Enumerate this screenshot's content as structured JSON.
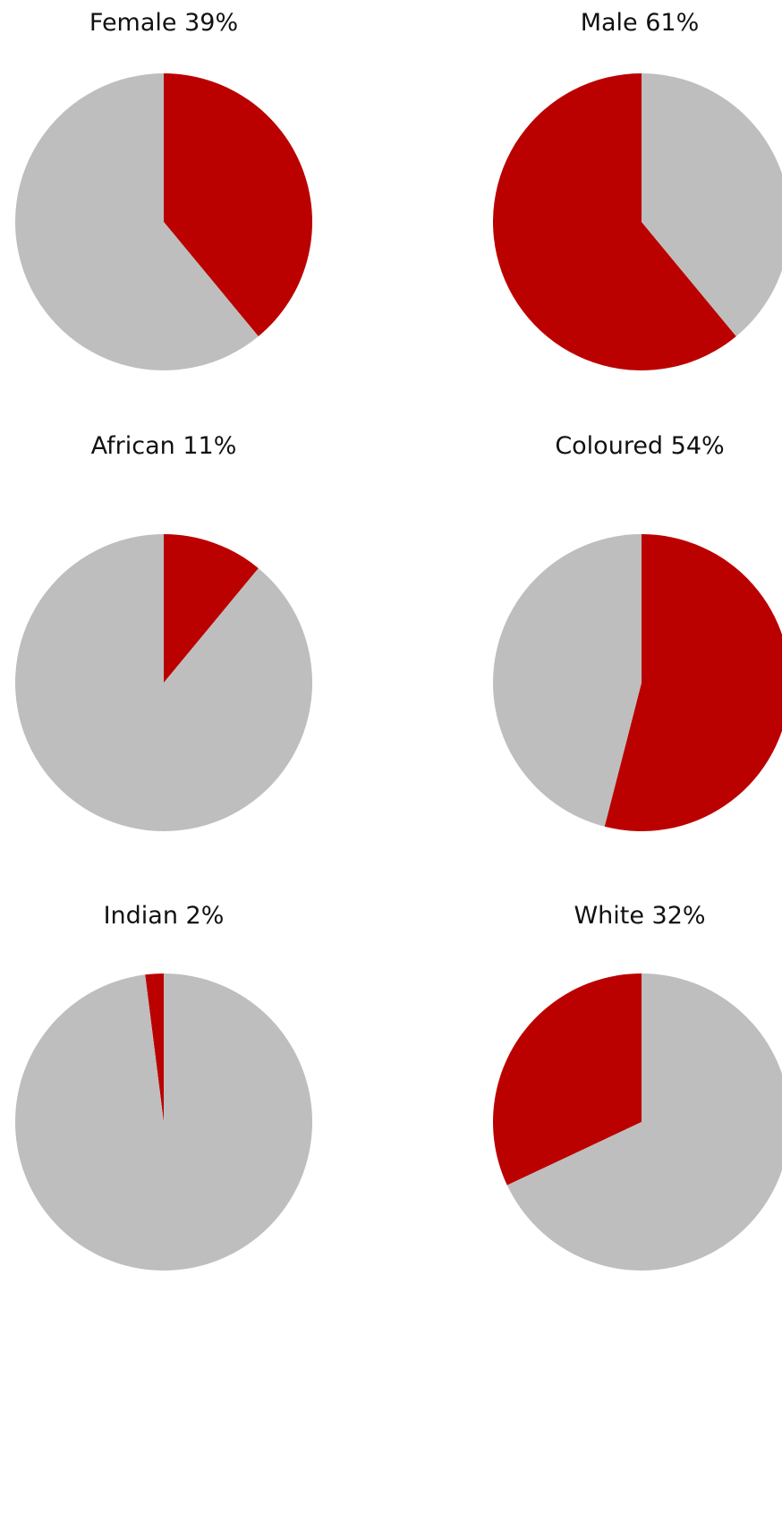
{
  "chart_data": [
    {
      "type": "pie",
      "title": "Female 39%",
      "values": [
        39,
        61
      ],
      "colors": [
        "#bb0000",
        "#bebebe"
      ]
    },
    {
      "type": "pie",
      "title": "Male 61%",
      "values": [
        61,
        39
      ],
      "colors": [
        "#bb0000",
        "#bebebe"
      ]
    },
    {
      "type": "pie",
      "title": "African 11%",
      "values": [
        11,
        89
      ],
      "colors": [
        "#bb0000",
        "#bebebe"
      ]
    },
    {
      "type": "pie",
      "title": "Coloured 54%",
      "values": [
        54,
        46
      ],
      "colors": [
        "#bb0000",
        "#bebebe"
      ]
    },
    {
      "type": "pie",
      "title": "Indian 2%",
      "values": [
        2,
        98
      ],
      "colors": [
        "#bb0000",
        "#bebebe"
      ]
    },
    {
      "type": "pie",
      "title": "White 32%",
      "values": [
        32,
        68
      ],
      "colors": [
        "#bb0000",
        "#bebebe"
      ]
    }
  ]
}
